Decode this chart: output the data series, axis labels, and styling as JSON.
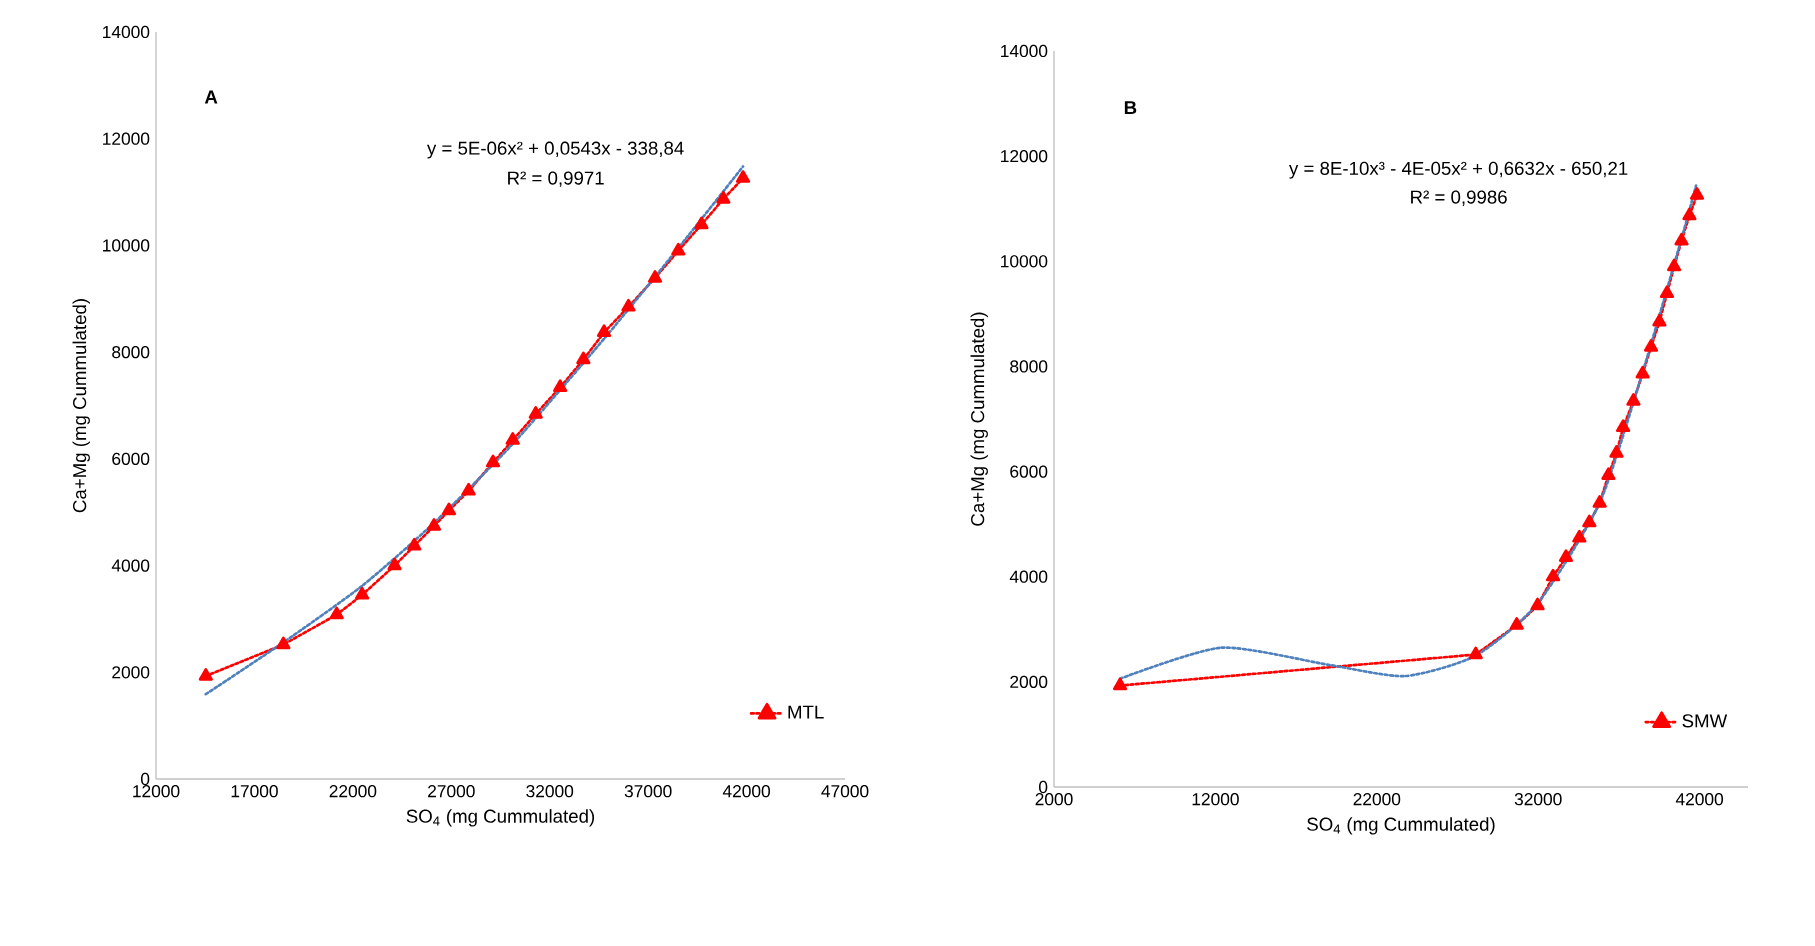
{
  "chart_data": [
    {
      "type": "line",
      "xlabel": "SO$_{4}$ (mg Cummulated)",
      "ylabel": "Ca+Mg (mg Cummulated)",
      "annotations": [
        "**A**",
        "y = 5E-06x² + 0,0543x - 338,84",
        "R² = 0,9971"
      ],
      "x": [
        14530,
        18470,
        21180,
        22470,
        24120,
        25120,
        26120,
        26880,
        27880,
        29120,
        30120,
        31290,
        32530,
        33710,
        34760,
        36000,
        37350,
        38530,
        39710,
        40820,
        41820
      ],
      "series": [
        {
          "name": "MTL",
          "color": "#ff0000",
          "marker": "triangle",
          "line_style": "dotted",
          "values": [
            1930,
            2520,
            3080,
            3450,
            4000,
            4370,
            4740,
            5030,
            5400,
            5930,
            6350,
            6840,
            7340,
            7860,
            8370,
            8850,
            9390,
            9900,
            10390,
            10870,
            11260
          ]
        },
        {
          "color": "#4f81bd",
          "marker": "none",
          "line_style": "dotted",
          "x": [
            14530,
            18470,
            22470,
            26120,
            30120,
            34760,
            38530,
            41820
          ],
          "values": [
            1590,
            2560,
            3620,
            4800,
            6280,
            8250,
            9950,
            11480
          ]
        }
      ],
      "xlim": [
        12000,
        47000
      ],
      "xticks": [
        12000,
        17000,
        22000,
        27000,
        32000,
        37000,
        42000,
        47000
      ],
      "ylim": [
        0,
        14000
      ],
      "yticks": [
        0,
        2000,
        4000,
        6000,
        8000,
        10000,
        12000,
        14000
      ],
      "legend": "bottom right"
    },
    {
      "type": "line",
      "xlabel": "SO$_{4}$ (mg Cummulated)",
      "ylabel": "Ca+Mg (mg Cummulated)",
      "annotations": [
        "**B**",
        "y = 8E-10x³ - 4E-05x² + 0,6632x - 650,21",
        "R² = 0,9986"
      ],
      "x": [
        6090,
        28130,
        30670,
        31960,
        32920,
        33720,
        34550,
        35170,
        35810,
        36350,
        36850,
        37260,
        37900,
        38470,
        38990,
        39510,
        39980,
        40420,
        40880,
        41370,
        41840
      ],
      "series": [
        {
          "name": "SMW",
          "color": "#ff0000",
          "marker": "triangle",
          "line_style": "dotted",
          "values": [
            1930,
            2520,
            3080,
            3450,
            4000,
            4370,
            4740,
            5030,
            5400,
            5930,
            6350,
            6840,
            7340,
            7860,
            8370,
            8850,
            9390,
            9900,
            10390,
            10870,
            11260
          ]
        },
        {
          "color": "#4f81bd",
          "marker": "none",
          "line_style": "dotted",
          "x": [
            6090,
            12370,
            19090,
            23740,
            28130,
            31960,
            35810,
            38470,
            40880,
            41780
          ],
          "values": [
            2060,
            2650,
            2320,
            2110,
            2500,
            3490,
            5410,
            7890,
            10430,
            11440
          ]
        }
      ],
      "xlim": [
        2000,
        45000
      ],
      "xticks": [
        2000,
        12000,
        22000,
        32000,
        42000
      ],
      "ylim": [
        0,
        14000
      ],
      "yticks": [
        0,
        2000,
        4000,
        6000,
        8000,
        10000,
        12000,
        14000
      ],
      "legend": "bottom right"
    }
  ]
}
